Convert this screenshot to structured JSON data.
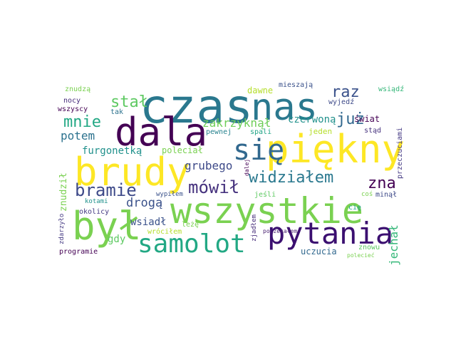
{
  "words": [
    {
      "text": "czas",
      "color": "#2a788e"
    },
    {
      "text": "nas",
      "color": "#2a788e"
    },
    {
      "text": "dala",
      "color": "#440154"
    },
    {
      "text": "piękny",
      "color": "#fde725"
    },
    {
      "text": "brudy",
      "color": "#fde725"
    },
    {
      "text": "wszystkie",
      "color": "#7ad151"
    },
    {
      "text": "był",
      "color": "#7ad151"
    },
    {
      "text": "pytania",
      "color": "#3b0f70"
    },
    {
      "text": "samolot",
      "color": "#22a884"
    },
    {
      "text": "się",
      "color": "#31688e"
    },
    {
      "text": "bramie",
      "color": "#3e4a89"
    },
    {
      "text": "mówił",
      "color": "#46327e"
    },
    {
      "text": "widziałem",
      "color": "#2a788e"
    },
    {
      "text": "stał",
      "color": "#5ec962"
    },
    {
      "text": "mnie",
      "color": "#22a884"
    },
    {
      "text": "już",
      "color": "#31688e"
    },
    {
      "text": "raz",
      "color": "#3b528b"
    },
    {
      "text": "zna",
      "color": "#440154"
    },
    {
      "text": "zakrzyknął",
      "color": "#6ece58"
    },
    {
      "text": "czerwoną",
      "color": "#21918c"
    },
    {
      "text": "potem",
      "color": "#2c728e"
    },
    {
      "text": "furgonetką",
      "color": "#21918c"
    },
    {
      "text": "grubego",
      "color": "#3e4a89"
    },
    {
      "text": "drogą",
      "color": "#3b528b"
    },
    {
      "text": "jechał",
      "color": "#35b779"
    },
    {
      "text": "wsiadł",
      "color": "#3b528b"
    },
    {
      "text": "gdy",
      "color": "#5ec962"
    },
    {
      "text": "uczucia",
      "color": "#31688e"
    },
    {
      "text": "zniósł",
      "color": "#2a788e"
    },
    {
      "text": "poleciał",
      "color": "#7ad151"
    },
    {
      "text": "zostanę",
      "color": "#22a884"
    },
    {
      "text": "znudził",
      "color": "#7ad151"
    },
    {
      "text": "jeden",
      "color": "#b5de2b"
    },
    {
      "text": "świat",
      "color": "#440154"
    },
    {
      "text": "stąd",
      "color": "#46327e"
    },
    {
      "text": "wyjedź",
      "color": "#3e4a89"
    },
    {
      "text": "pewnej",
      "color": "#26828e"
    },
    {
      "text": "spali",
      "color": "#20a486"
    },
    {
      "text": "tak",
      "color": "#2c728e"
    },
    {
      "text": "nocy",
      "color": "#472d7b"
    },
    {
      "text": "wszyscy",
      "color": "#440154"
    },
    {
      "text": "znudzą",
      "color": "#7ad151"
    },
    {
      "text": "dawne",
      "color": "#b5de2b"
    },
    {
      "text": "mieszają",
      "color": "#3b528b"
    },
    {
      "text": "wsiądź",
      "color": "#35b779"
    },
    {
      "text": "przeczuciami",
      "color": "#443983"
    },
    {
      "text": "cię",
      "color": "#20a486"
    },
    {
      "text": "minął",
      "color": "#3e4a89"
    },
    {
      "text": "coś",
      "color": "#7ad151"
    },
    {
      "text": "wypiłem",
      "color": "#3b528b"
    },
    {
      "text": "jeśli",
      "color": "#5ec962"
    },
    {
      "text": "kotami",
      "color": "#21918c"
    },
    {
      "text": "okolicy",
      "color": "#443983"
    },
    {
      "text": "leżę",
      "color": "#7ad151"
    },
    {
      "text": "wróciłem",
      "color": "#b5de2b"
    },
    {
      "text": "zjadłem",
      "color": "#472d7b"
    },
    {
      "text": "dalej",
      "color": "#440154"
    },
    {
      "text": "poczekałem",
      "color": "#481f70"
    },
    {
      "text": "znowu",
      "color": "#5ec962"
    },
    {
      "text": "polecieć",
      "color": "#7ad151"
    },
    {
      "text": "zdarzyło",
      "color": "#443983"
    },
    {
      "text": "programie",
      "color": "#440154"
    }
  ]
}
